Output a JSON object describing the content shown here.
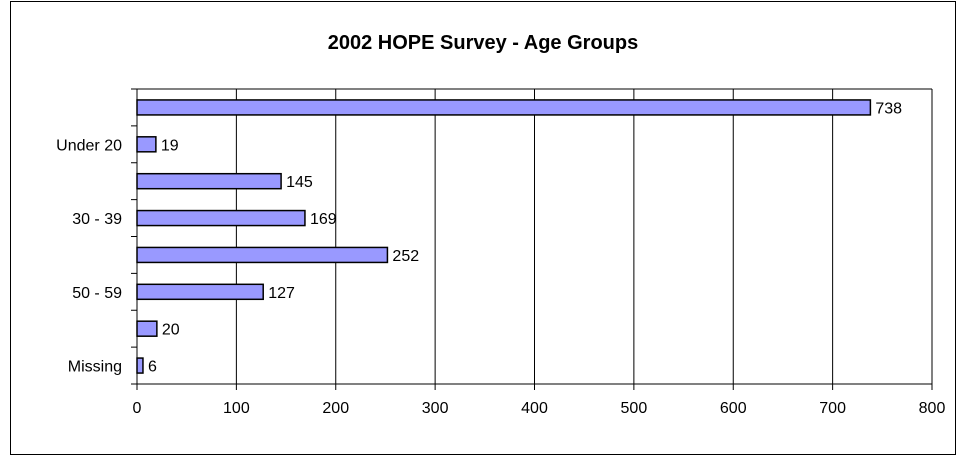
{
  "chart_data": {
    "type": "bar",
    "orientation": "horizontal",
    "title": "2002 HOPE Survey - Age Groups",
    "xlabel": "",
    "ylabel": "",
    "xlim": [
      0,
      800
    ],
    "x_ticks": [
      "0",
      "100",
      "200",
      "300",
      "400",
      "500",
      "600",
      "700",
      "800"
    ],
    "grid": "vertical",
    "categories": [
      "",
      "Under 20",
      "",
      "30 - 39",
      "",
      "50 - 59",
      "",
      "Missing"
    ],
    "values": [
      738,
      19,
      145,
      169,
      252,
      127,
      20,
      6
    ],
    "bar_color": "#9999ff",
    "bar_edge_color": "#000000"
  }
}
